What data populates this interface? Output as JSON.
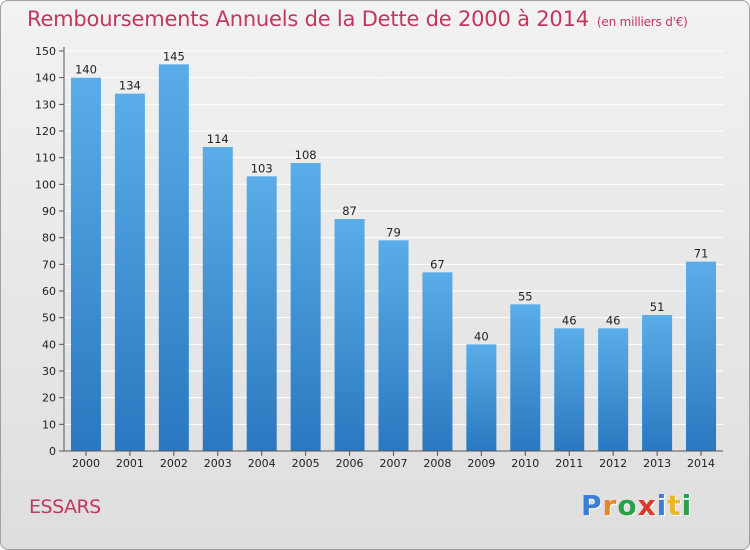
{
  "header": {
    "title": "Remboursements Annuels de la Dette de 2000 à 2014",
    "subtitle": "(en milliers d'€)"
  },
  "commune": "ESSARS",
  "logo": {
    "text": "Proxiti",
    "letters": [
      {
        "char": "P",
        "color": "#3b7fd4"
      },
      {
        "char": "r",
        "color": "#e8862a"
      },
      {
        "char": "o",
        "color": "#2aa04a"
      },
      {
        "char": "x",
        "color": "#d93a2b"
      },
      {
        "char": "i",
        "color": "#3b7fd4"
      },
      {
        "char": "t",
        "color": "#e8b82a"
      },
      {
        "char": "i",
        "color": "#2aa04a"
      }
    ]
  },
  "colors": {
    "title": "#c1385f",
    "bar_top": "#5aade8",
    "bar_bottom": "#2a78c0",
    "grid": "#ffffff"
  },
  "chart_data": {
    "type": "bar",
    "categories": [
      "2000",
      "2001",
      "2002",
      "2003",
      "2004",
      "2005",
      "2006",
      "2007",
      "2008",
      "2009",
      "2010",
      "2011",
      "2012",
      "2013",
      "2014"
    ],
    "values": [
      140,
      134,
      145,
      114,
      103,
      108,
      87,
      79,
      67,
      40,
      55,
      46,
      46,
      51,
      71
    ],
    "ylim": [
      0,
      150
    ],
    "yticks": [
      0,
      10,
      20,
      30,
      40,
      50,
      60,
      70,
      80,
      90,
      100,
      110,
      120,
      130,
      140,
      150
    ],
    "grid": true,
    "data_labels": true
  }
}
